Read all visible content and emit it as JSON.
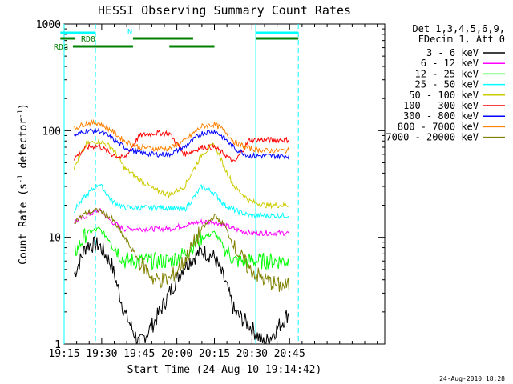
{
  "chart_data": {
    "type": "line",
    "title": "HESSI Observing Summary Count Rates",
    "xlabel": "Start Time (24-Aug-10 19:14:42)",
    "ylabel_main": "Count Rate (s",
    "ylabel_sup1": "-1",
    "ylabel_mid": " detector",
    "ylabel_sup2": "-1",
    "ylabel_end": ")",
    "footer": "24-Aug-2010 18:28",
    "y_scale": "log",
    "ylim": [
      1,
      1000
    ],
    "xlim_min": [
      0,
      128
    ],
    "x_ticks": [
      {
        "label": "19:15",
        "t": 0
      },
      {
        "label": "19:30",
        "t": 15
      },
      {
        "label": "19:45",
        "t": 30
      },
      {
        "label": "20:00",
        "t": 45
      },
      {
        "label": "20:15",
        "t": 60
      },
      {
        "label": "20:30",
        "t": 75
      },
      {
        "label": "20:45",
        "t": 90
      }
    ],
    "y_ticks": [
      {
        "label": "1",
        "v": 1
      },
      {
        "label": "10",
        "v": 10
      },
      {
        "label": "100",
        "v": 100
      },
      {
        "label": "1000",
        "v": 1000
      }
    ],
    "legend": {
      "line1": "Det 1,3,4,5,6,9,",
      "line2": "FDecim 1, Att 0",
      "placement": "right"
    },
    "flag_labels": {
      "n": "N",
      "rd0": "RD0",
      "rdg": "RDG"
    },
    "flags": {
      "n": {
        "color": "#00ffff",
        "segments": [
          [
            -1.5,
            12.5
          ],
          [
            76.5,
            93.5
          ]
        ]
      },
      "rd0": {
        "color": "#008000",
        "segments": [
          [
            -1.5,
            4.5
          ],
          [
            27.5,
            51.5
          ],
          [
            76.5,
            93.5
          ]
        ]
      },
      "rdg": {
        "color": "#008000",
        "segments": [
          [
            3.5,
            27.5
          ],
          [
            42,
            60
          ]
        ]
      }
    },
    "vlines": [
      {
        "t": 0,
        "style": "solid",
        "color": "#00ffff"
      },
      {
        "t": 12.5,
        "style": "dashed",
        "color": "#00ffff"
      },
      {
        "t": 76.5,
        "style": "solid",
        "color": "#00ffff"
      },
      {
        "t": 93.5,
        "style": "dashed",
        "color": "#00ffff"
      }
    ],
    "series": [
      {
        "name": "3 - 6 keV",
        "color": "#000000",
        "values": [
          4.5,
          8.5,
          8.5,
          5.5,
          2.0,
          1.0,
          1.6,
          3.0,
          5.5,
          7.5,
          6.5,
          4.0,
          2.0,
          1.5,
          1.0,
          1.5,
          2.0
        ]
      },
      {
        "name": "6 - 12 keV",
        "color": "#ff00ff",
        "values": [
          14,
          16,
          18,
          14,
          12,
          12,
          12,
          12,
          13,
          14,
          14,
          13,
          12,
          11,
          11,
          11,
          11
        ]
      },
      {
        "name": "12 - 25 keV",
        "color": "#00ff00",
        "values": [
          7,
          11,
          12,
          9,
          6,
          6,
          6,
          6,
          7,
          10,
          11,
          8,
          6,
          6,
          6,
          6,
          6
        ]
      },
      {
        "name": "25 - 50 keV",
        "color": "#00ffff",
        "values": [
          18,
          25,
          32,
          22,
          19,
          19,
          19,
          19,
          18,
          30,
          26,
          20,
          18,
          16,
          16,
          16,
          16
        ]
      },
      {
        "name": "50 - 100 keV",
        "color": "#cccc00",
        "values": [
          45,
          75,
          80,
          70,
          45,
          35,
          28,
          25,
          30,
          60,
          75,
          45,
          30,
          22,
          20,
          20,
          20
        ]
      },
      {
        "name": "100 - 300 keV",
        "color": "#ff0000",
        "values": [
          55,
          70,
          72,
          60,
          55,
          90,
          95,
          95,
          60,
          70,
          70,
          60,
          50,
          82,
          82,
          82,
          82
        ]
      },
      {
        "name": "300 - 800 keV",
        "color": "#0000ff",
        "values": [
          90,
          100,
          100,
          85,
          70,
          62,
          60,
          60,
          70,
          95,
          100,
          85,
          68,
          58,
          58,
          58,
          58
        ]
      },
      {
        "name": "800 - 7000 keV",
        "color": "#ff8000",
        "values": [
          105,
          118,
          118,
          100,
          80,
          70,
          68,
          68,
          80,
          110,
          115,
          100,
          78,
          68,
          65,
          65,
          65
        ]
      },
      {
        "name": "7000 - 20000 keV",
        "color": "#808000",
        "values": [
          14,
          17,
          18,
          15,
          10,
          6,
          4,
          4,
          6,
          12,
          16,
          13,
          8,
          5,
          4,
          3.5,
          3.5
        ]
      }
    ],
    "series_time": [
      4,
      9,
      14,
      19,
      24,
      30,
      36,
      42,
      48,
      55,
      60,
      64,
      68,
      74,
      80,
      86,
      90
    ]
  }
}
